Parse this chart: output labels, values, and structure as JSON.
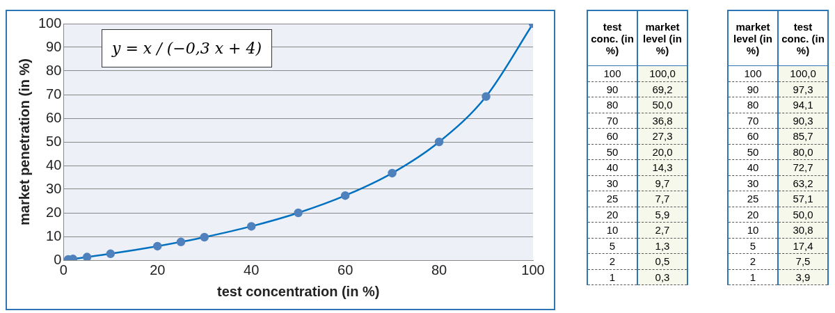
{
  "chart_data": [
    {
      "type": "line",
      "xlabel": "test concentration (in %)",
      "ylabel": "market penetration (in %)",
      "annotations": [
        "y = x / (−0,3 x + 4)"
      ],
      "x": [
        1,
        2,
        5,
        10,
        20,
        25,
        30,
        40,
        50,
        60,
        70,
        80,
        90,
        100
      ],
      "series": [
        {
          "color": "#0070c0",
          "values": [
            0.3,
            0.5,
            1.3,
            2.7,
            5.9,
            7.7,
            9.7,
            14.3,
            20.0,
            27.3,
            36.8,
            50.0,
            69.2,
            100.0
          ]
        }
      ],
      "xlim": [
        0,
        100
      ],
      "xticks": [
        0,
        20,
        40,
        60,
        80,
        100
      ],
      "ylim": [
        0,
        100
      ],
      "yticks": [
        0,
        10,
        20,
        30,
        40,
        50,
        60,
        70,
        80,
        90,
        100
      ],
      "grid": "y",
      "legend": false,
      "marker": "circle",
      "line_style": "solid"
    },
    {
      "type": "other",
      "xlabel": "test conc. (in %)",
      "ylabel": "market level (in %)",
      "categories": [
        "100",
        "90",
        "80",
        "70",
        "60",
        "50",
        "40",
        "30",
        "25",
        "20",
        "10",
        "5",
        "2",
        "1"
      ],
      "value_labels": [
        "100,0",
        "69,2",
        "50,0",
        "36,8",
        "27,3",
        "20,0",
        "14,3",
        "9,7",
        "7,7",
        "5,9",
        "2,7",
        "1,3",
        "0,5",
        "0,3"
      ]
    },
    {
      "type": "other",
      "xlabel": "market level (in %)",
      "ylabel": "test conc. (in %)",
      "categories": [
        "100",
        "90",
        "80",
        "70",
        "60",
        "50",
        "40",
        "30",
        "25",
        "20",
        "10",
        "5",
        "2",
        "1"
      ],
      "value_labels": [
        "100,0",
        "97,3",
        "94,1",
        "90,3",
        "85,7",
        "80,0",
        "72,7",
        "63,2",
        "57,1",
        "50,0",
        "30,8",
        "17,4",
        "7,5",
        "3,9"
      ]
    }
  ]
}
